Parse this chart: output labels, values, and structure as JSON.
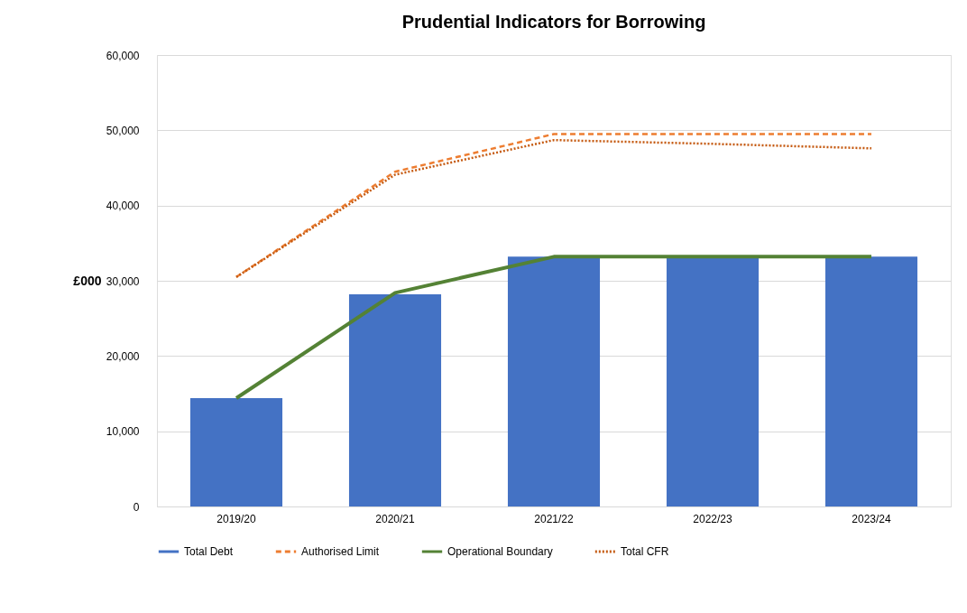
{
  "chart_data": {
    "type": "bar",
    "title": "Prudential Indicators for Borrowing",
    "ylabel": "£000",
    "categories": [
      "2019/20",
      "2020/21",
      "2021/22",
      "2022/23",
      "2023/24"
    ],
    "series": [
      {
        "name": "Total Debt",
        "color": "#4472c4",
        "values": [
          14400,
          28200,
          33200,
          33200,
          33200
        ]
      },
      {
        "name": "Authorised Limit",
        "type": "line",
        "line_style": "dashed",
        "color": "#ed7d31",
        "values": [
          30500,
          44500,
          49500,
          49500,
          49500
        ]
      },
      {
        "name": "Operational Boundary",
        "type": "line",
        "line_style": "solid",
        "color": "#548235",
        "values": [
          14400,
          28400,
          33200,
          33200,
          33200
        ]
      },
      {
        "name": "Total CFR",
        "type": "line",
        "line_style": "dotted",
        "color": "#c55a11",
        "values": [
          30500,
          44100,
          48700,
          48200,
          47600
        ]
      }
    ],
    "ylim": [
      0,
      60000
    ],
    "yticks": [
      {
        "value": 0,
        "label": "0"
      },
      {
        "value": 10000,
        "label": "10,000"
      },
      {
        "value": 20000,
        "label": "20,000"
      },
      {
        "value": 30000,
        "label": "30,000"
      },
      {
        "value": 40000,
        "label": "40,000"
      },
      {
        "value": 50000,
        "label": "50,000"
      },
      {
        "value": 60000,
        "label": "60,000"
      }
    ],
    "grid": "y",
    "legend": "bottom"
  }
}
